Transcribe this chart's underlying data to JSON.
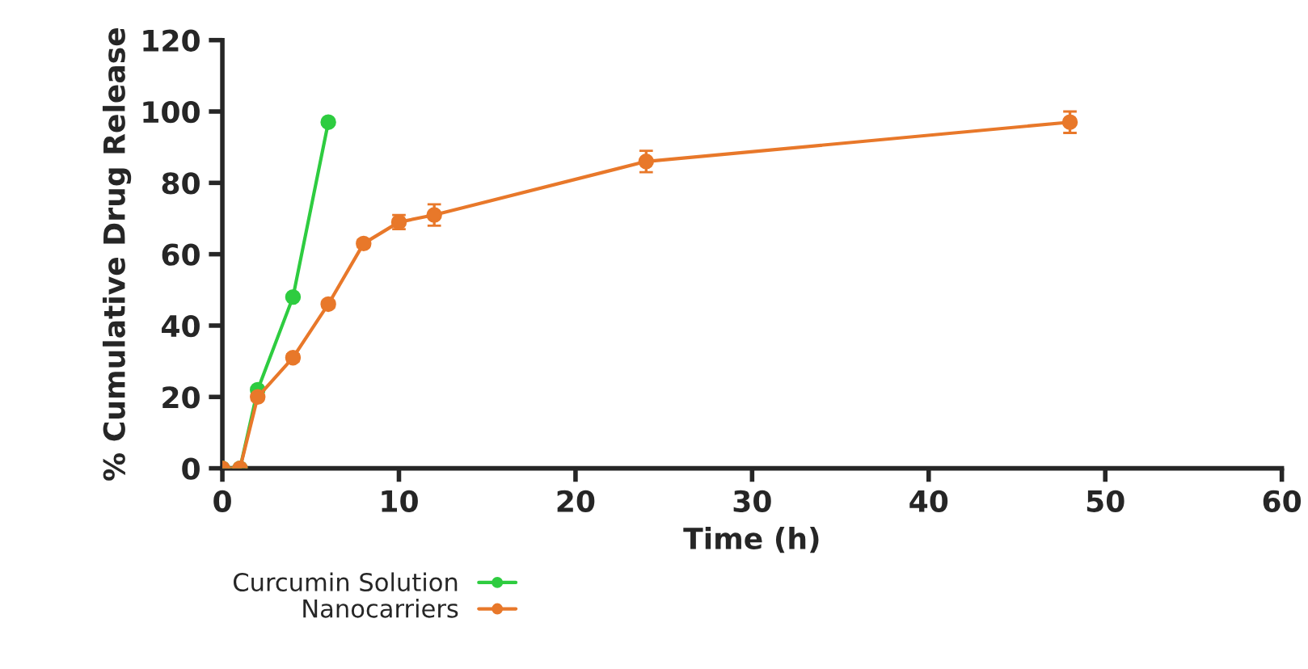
{
  "chart_data": {
    "type": "line",
    "xlabel": "Time (h)",
    "ylabel": "% Cumulative Drug Release",
    "xlim": [
      0,
      60
    ],
    "xticks": [
      0,
      10,
      20,
      30,
      40,
      50,
      60
    ],
    "ylim": [
      0,
      120
    ],
    "yticks": [
      0,
      20,
      40,
      60,
      80,
      100,
      120
    ],
    "grid": false,
    "legend": "bottom",
    "marker": "circle",
    "line_style": "solid",
    "series": [
      {
        "name": "Curcumin Solution",
        "color": "#2ecc40",
        "x": [
          0,
          1,
          2,
          4,
          6
        ],
        "values": [
          0,
          0,
          22,
          48,
          97
        ]
      },
      {
        "name": "Nanocarriers",
        "color": "#e8782a",
        "x": [
          0,
          1,
          2,
          4,
          6,
          8,
          10,
          12,
          24,
          48
        ],
        "values": [
          0,
          0,
          20,
          31,
          46,
          63,
          69,
          71,
          86,
          97
        ],
        "errors": [
          null,
          null,
          1,
          1,
          1,
          1,
          2,
          3,
          3,
          3
        ]
      }
    ]
  }
}
